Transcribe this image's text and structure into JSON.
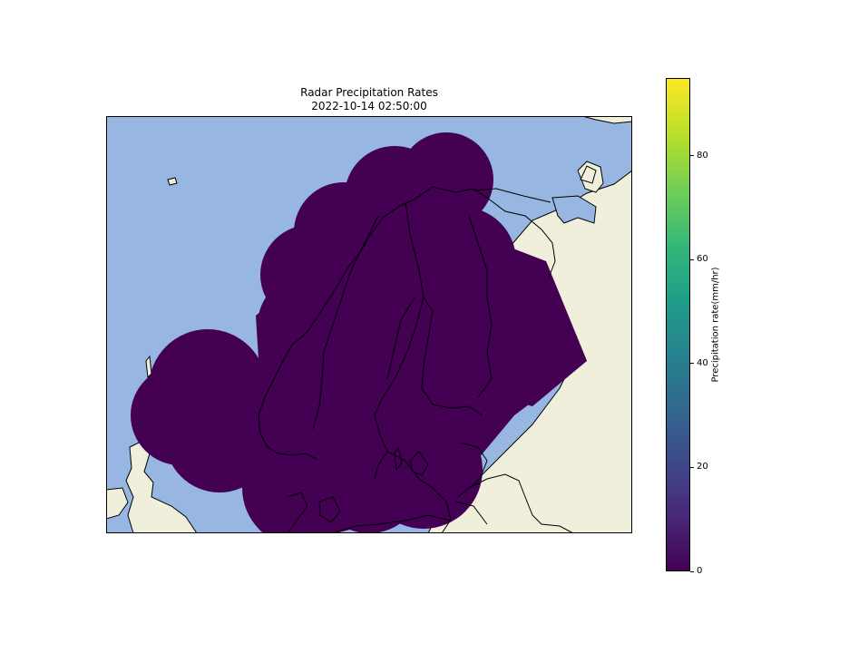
{
  "title": {
    "line1": "Radar Precipitation Rates",
    "line2": "2022-10-14 02:50:00"
  },
  "colorbar": {
    "label": "Precipitation rate(mm/hr)",
    "range": [
      0,
      95
    ],
    "colormap": "viridis",
    "ticks": [
      {
        "value": 0,
        "label": "0"
      },
      {
        "value": 20,
        "label": "20"
      },
      {
        "value": 40,
        "label": "40"
      },
      {
        "value": 60,
        "label": "60"
      },
      {
        "value": 80,
        "label": "80"
      }
    ]
  },
  "map": {
    "ocean_color": "#97b6e1",
    "land_color": "#efefdb",
    "coverage_color": "#440154",
    "coastline_color": "#000000"
  }
}
